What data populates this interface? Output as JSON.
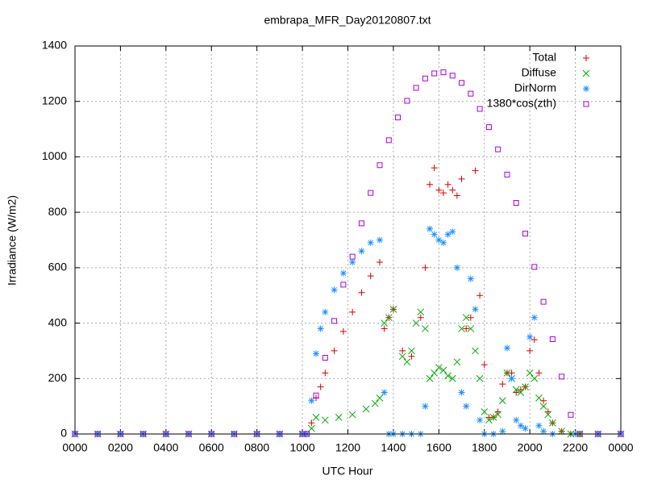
{
  "chart_data": {
    "type": "scatter",
    "title": "embrapa_MFR_Day20120807.txt",
    "x_label": "UTC Hour",
    "y_label": "Irradiance (W/m2)",
    "xlim": [
      0,
      24
    ],
    "ylim": [
      0,
      1400
    ],
    "xticks": [
      {
        "value": 0,
        "label": "0000"
      },
      {
        "value": 2,
        "label": "0200"
      },
      {
        "value": 4,
        "label": "0400"
      },
      {
        "value": 6,
        "label": "0600"
      },
      {
        "value": 8,
        "label": "0800"
      },
      {
        "value": 10,
        "label": "1000"
      },
      {
        "value": 12,
        "label": "1200"
      },
      {
        "value": 14,
        "label": "1400"
      },
      {
        "value": 16,
        "label": "1600"
      },
      {
        "value": 18,
        "label": "1800"
      },
      {
        "value": 20,
        "label": "2000"
      },
      {
        "value": 22,
        "label": "2200"
      },
      {
        "value": 24,
        "label": "0000"
      }
    ],
    "yticks": [
      0,
      200,
      400,
      600,
      800,
      1000,
      1200,
      1400
    ],
    "grid": true,
    "legend": "top-right",
    "series": [
      {
        "name": "Total",
        "color": "#dd0000",
        "marker": "plus",
        "x": [
          0,
          1,
          2,
          3,
          4,
          5,
          6,
          7,
          8,
          9,
          10,
          10.4,
          10.6,
          10.8,
          11.0,
          11.4,
          11.8,
          12.2,
          12.6,
          13.0,
          13.4,
          13.6,
          13.8,
          14.0,
          14.4,
          14.8,
          15.2,
          15.4,
          15.6,
          15.8,
          16.0,
          16.2,
          16.4,
          16.6,
          16.8,
          17.0,
          17.2,
          17.4,
          17.6,
          17.8,
          18.0,
          18.2,
          18.4,
          18.6,
          18.8,
          19.0,
          19.2,
          19.4,
          19.6,
          19.8,
          20.0,
          20.2,
          20.4,
          20.6,
          20.8,
          21.0,
          21.4,
          21.8,
          22.2,
          23,
          24
        ],
        "values": [
          0,
          0,
          0,
          0,
          0,
          0,
          0,
          0,
          0,
          0,
          0,
          40,
          130,
          170,
          220,
          300,
          370,
          440,
          510,
          570,
          620,
          380,
          420,
          450,
          300,
          280,
          420,
          600,
          900,
          960,
          880,
          870,
          900,
          880,
          860,
          920,
          380,
          420,
          950,
          500,
          250,
          60,
          60,
          80,
          180,
          220,
          220,
          150,
          160,
          170,
          300,
          340,
          220,
          120,
          80,
          40,
          10,
          0,
          0,
          0,
          0
        ]
      },
      {
        "name": "Diffuse",
        "color": "#00aa00",
        "marker": "cross",
        "x": [
          0,
          1,
          2,
          3,
          4,
          5,
          6,
          7,
          8,
          9,
          10,
          10.4,
          10.6,
          11.0,
          11.6,
          12.2,
          12.8,
          13.2,
          13.4,
          13.6,
          13.8,
          14.0,
          14.4,
          14.6,
          14.8,
          15.0,
          15.2,
          15.4,
          15.6,
          15.8,
          16.0,
          16.2,
          16.4,
          16.6,
          16.8,
          17.0,
          17.2,
          17.4,
          17.6,
          17.8,
          18.0,
          18.2,
          18.4,
          18.6,
          18.8,
          19.0,
          19.2,
          19.4,
          19.6,
          19.8,
          20.0,
          20.2,
          20.4,
          20.6,
          20.8,
          21.0,
          21.4,
          21.8,
          22.2,
          23,
          24
        ],
        "values": [
          0,
          0,
          0,
          0,
          0,
          0,
          0,
          0,
          0,
          0,
          0,
          20,
          60,
          50,
          60,
          70,
          90,
          110,
          130,
          400,
          420,
          450,
          280,
          260,
          300,
          400,
          440,
          380,
          200,
          220,
          240,
          230,
          210,
          200,
          260,
          380,
          420,
          380,
          300,
          200,
          80,
          50,
          60,
          70,
          120,
          220,
          200,
          160,
          150,
          170,
          220,
          200,
          130,
          100,
          70,
          40,
          10,
          0,
          0,
          0,
          0
        ]
      },
      {
        "name": "DirNorm",
        "color": "#1e90ff",
        "marker": "star",
        "x": [
          0,
          1,
          2,
          3,
          4,
          5,
          6,
          7,
          8,
          9,
          10,
          10.2,
          10.4,
          10.6,
          10.8,
          11.0,
          11.4,
          11.8,
          12.2,
          12.6,
          13.0,
          13.4,
          13.6,
          13.8,
          14.0,
          14.4,
          14.8,
          15.2,
          15.4,
          15.6,
          15.8,
          16.0,
          16.2,
          16.4,
          16.6,
          16.8,
          17.0,
          17.2,
          17.4,
          17.6,
          17.8,
          18.0,
          18.4,
          18.8,
          19.0,
          19.2,
          19.4,
          19.6,
          19.8,
          20.0,
          20.2,
          20.4,
          20.6,
          21.0,
          22,
          23,
          24
        ],
        "values": [
          0,
          0,
          0,
          0,
          0,
          0,
          0,
          0,
          0,
          0,
          0,
          0,
          120,
          290,
          380,
          440,
          520,
          580,
          620,
          660,
          690,
          700,
          150,
          0,
          0,
          0,
          0,
          0,
          100,
          740,
          720,
          700,
          690,
          720,
          730,
          600,
          150,
          100,
          560,
          450,
          50,
          0,
          0,
          10,
          310,
          200,
          50,
          30,
          20,
          350,
          420,
          30,
          10,
          0,
          0,
          0,
          0
        ]
      },
      {
        "name": "1380*cos(zth)",
        "color": "#aa00dd",
        "marker": "square",
        "x": [
          0,
          1,
          2,
          3,
          4,
          5,
          6,
          7,
          8,
          9,
          10,
          10.2,
          10.6,
          11.0,
          11.4,
          11.8,
          12.2,
          12.6,
          13.0,
          13.4,
          13.8,
          14.2,
          14.6,
          15.0,
          15.4,
          15.8,
          16.2,
          16.6,
          17.0,
          17.4,
          17.8,
          18.2,
          18.6,
          19.0,
          19.4,
          19.8,
          20.2,
          20.6,
          21.0,
          21.4,
          21.8,
          22.2,
          23,
          24
        ],
        "values": [
          0,
          0,
          0,
          0,
          0,
          0,
          0,
          0,
          0,
          0,
          0,
          0,
          139,
          275,
          408,
          539,
          640,
          760,
          870,
          970,
          1060,
          1142,
          1202,
          1249,
          1283,
          1301,
          1305,
          1293,
          1267,
          1228,
          1173,
          1107,
          1027,
          936,
          834,
          723,
          603,
          477,
          342,
          207,
          69,
          0,
          0,
          0
        ]
      }
    ]
  }
}
